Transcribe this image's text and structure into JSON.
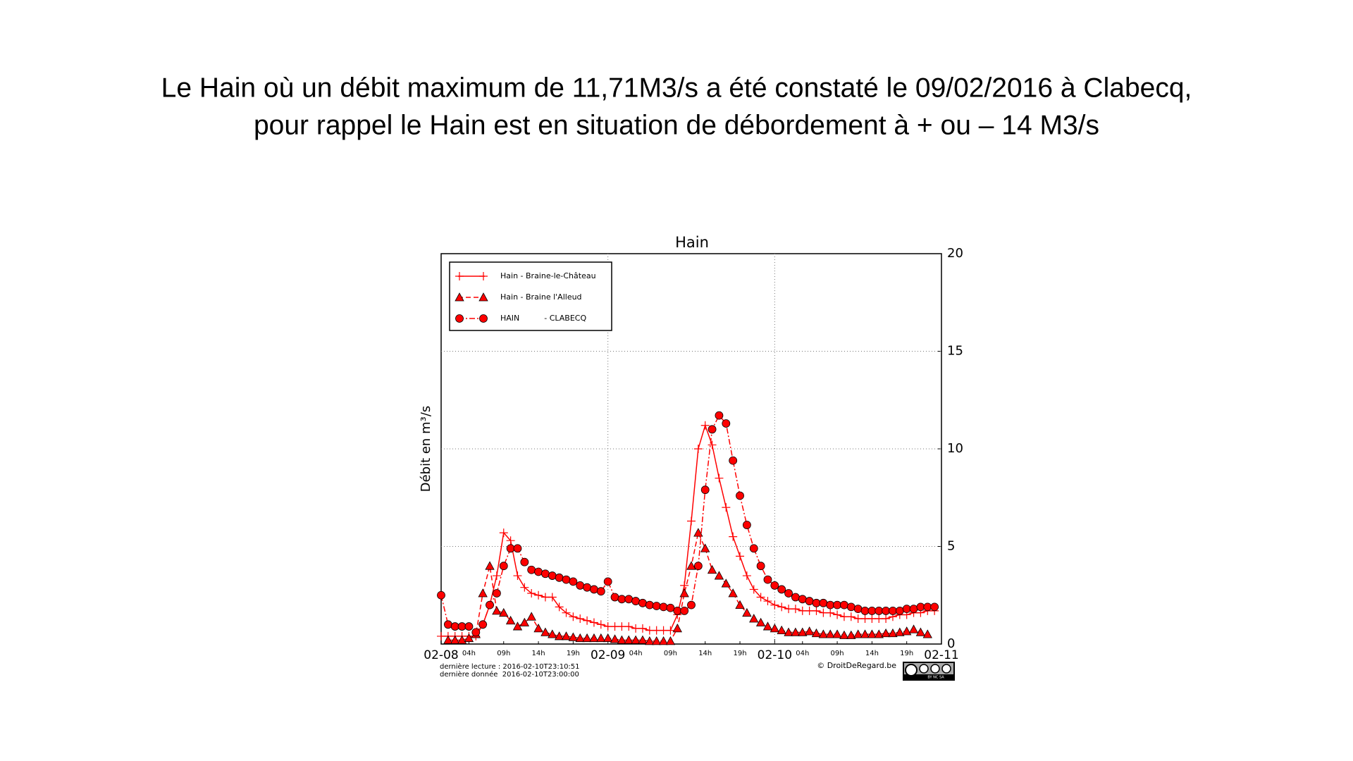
{
  "slide": {
    "title_lines": [
      "Le Hain où un débit maximum de 11,71M3/s a été constaté le 09/02/2016 à Clabecq,",
      "pour rappel le Hain est en situation de débordement à + ou – 14 M3/s"
    ]
  },
  "chart_data": {
    "type": "line",
    "title": "Hain",
    "y_label": "Débit en m³/s",
    "x": [
      0,
      1,
      2,
      3,
      4,
      5,
      6,
      7,
      8,
      9,
      10,
      11,
      12,
      13,
      14,
      15,
      16,
      17,
      18,
      19,
      20,
      21,
      22,
      23,
      24,
      25,
      26,
      27,
      28,
      29,
      30,
      31,
      32,
      33,
      34,
      35,
      36,
      37,
      38,
      39,
      40,
      41,
      42,
      43,
      44,
      45,
      46,
      47,
      48,
      49,
      50,
      51,
      52,
      53,
      54,
      55,
      56,
      57,
      58,
      59,
      60,
      61,
      62,
      63,
      64,
      65,
      66,
      67,
      68,
      69,
      70,
      71
    ],
    "series": [
      {
        "name": "Hain - Braine-le-Château",
        "color": "#ff0000",
        "marker": "plus",
        "linestyle": "solid",
        "values": [
          0.4,
          0.4,
          0.4,
          0.4,
          0.4,
          0.4,
          1.0,
          2.0,
          3.5,
          5.7,
          5.3,
          3.5,
          2.9,
          2.6,
          2.5,
          2.4,
          2.4,
          1.9,
          1.6,
          1.4,
          1.3,
          1.2,
          1.1,
          1.0,
          0.9,
          0.9,
          0.9,
          0.9,
          0.8,
          0.8,
          0.7,
          0.7,
          0.7,
          0.7,
          1.5,
          3.0,
          6.3,
          10.0,
          11.2,
          10.2,
          8.5,
          7.0,
          5.5,
          4.5,
          3.5,
          2.8,
          2.4,
          2.2,
          2.0,
          1.9,
          1.8,
          1.8,
          1.7,
          1.7,
          1.7,
          1.6,
          1.6,
          1.5,
          1.4,
          1.4,
          1.3,
          1.3,
          1.3,
          1.3,
          1.3,
          1.4,
          1.5,
          1.5,
          1.6,
          1.6,
          1.7,
          1.7
        ]
      },
      {
        "name": "Hain - Braine l'Alleud",
        "color": "#ff0000",
        "marker": "triangle",
        "linestyle": "dashed",
        "values": [
          null,
          0.2,
          0.2,
          0.2,
          0.3,
          0.5,
          2.6,
          4.0,
          1.7,
          1.6,
          1.2,
          0.9,
          1.1,
          1.4,
          0.8,
          0.6,
          0.5,
          0.4,
          0.4,
          0.35,
          0.3,
          0.3,
          0.3,
          0.3,
          0.3,
          0.25,
          0.2,
          0.2,
          0.2,
          0.2,
          0.15,
          0.15,
          0.15,
          0.15,
          0.8,
          2.6,
          4.0,
          5.7,
          4.9,
          3.8,
          3.5,
          3.1,
          2.6,
          2.0,
          1.6,
          1.3,
          1.1,
          0.9,
          0.8,
          0.7,
          0.6,
          0.6,
          0.6,
          0.65,
          0.55,
          0.5,
          0.5,
          0.5,
          0.45,
          0.45,
          0.5,
          0.5,
          0.5,
          0.5,
          0.55,
          0.55,
          0.6,
          0.65,
          0.75,
          0.6,
          0.5,
          null
        ]
      },
      {
        "name": "HAIN          - CLABECQ",
        "color": "#ff0000",
        "marker": "circle",
        "linestyle": "dashdot",
        "values": [
          2.5,
          1.0,
          0.9,
          0.9,
          0.9,
          0.6,
          1.0,
          2.0,
          2.6,
          4.0,
          4.9,
          4.9,
          4.2,
          3.8,
          3.7,
          3.6,
          3.5,
          3.4,
          3.3,
          3.2,
          3.0,
          2.9,
          2.8,
          2.7,
          3.2,
          2.4,
          2.3,
          2.3,
          2.2,
          2.1,
          2.0,
          1.95,
          1.9,
          1.85,
          1.7,
          1.7,
          2.0,
          4.0,
          7.9,
          11.0,
          11.71,
          11.3,
          9.4,
          7.6,
          6.1,
          4.9,
          4.0,
          3.3,
          3.0,
          2.8,
          2.6,
          2.4,
          2.3,
          2.2,
          2.1,
          2.1,
          2.0,
          2.0,
          2.0,
          1.9,
          1.8,
          1.7,
          1.7,
          1.7,
          1.7,
          1.7,
          1.7,
          1.8,
          1.8,
          1.9,
          1.9,
          1.9
        ]
      }
    ],
    "xlim": [
      0,
      72
    ],
    "xticks": [
      {
        "value": 0,
        "label": "02-08"
      },
      {
        "value": 24,
        "label": "02-09"
      },
      {
        "value": 48,
        "label": "02-10"
      },
      {
        "value": 72,
        "label": "02-11"
      }
    ],
    "xticks_minor": [
      {
        "value": 4,
        "label": "04h"
      },
      {
        "value": 9,
        "label": "09h"
      },
      {
        "value": 14,
        "label": "14h"
      },
      {
        "value": 19,
        "label": "19h"
      },
      {
        "value": 28,
        "label": "04h"
      },
      {
        "value": 33,
        "label": "09h"
      },
      {
        "value": 38,
        "label": "14h"
      },
      {
        "value": 43,
        "label": "19h"
      },
      {
        "value": 52,
        "label": "04h"
      },
      {
        "value": 57,
        "label": "09h"
      },
      {
        "value": 62,
        "label": "14h"
      },
      {
        "value": 67,
        "label": "19h"
      }
    ],
    "ylim": [
      0,
      20
    ],
    "yticks": [
      0,
      5,
      10,
      15,
      20
    ],
    "y_axis_side": "right",
    "grid": true,
    "legend": "upper left",
    "footer_left": [
      "dernière lecture : 2016-02-10T23:10:51",
      "dernière donnée  2016-02-10T23:00:00"
    ],
    "footer_right": "© DroitDeRegard.be",
    "license": "BY NC SA"
  }
}
